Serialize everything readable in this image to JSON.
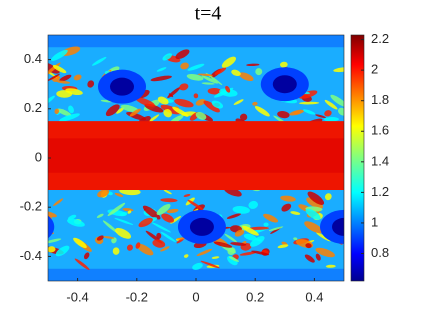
{
  "chart_data": {
    "type": "image",
    "title": "t=4",
    "colormap": "jet",
    "xlim": [
      -0.5,
      0.5
    ],
    "xticks": [
      -0.4,
      -0.2,
      0,
      0.2,
      0.4
    ],
    "ylim": [
      -0.5,
      0.5
    ],
    "yticks": [
      -0.4,
      -0.2,
      0,
      0.2,
      0.4
    ],
    "clim": [
      0.62,
      2.23
    ],
    "cticks": [
      0.8,
      1,
      1.2,
      1.4,
      1.6,
      1.8,
      2,
      2.2
    ]
  }
}
